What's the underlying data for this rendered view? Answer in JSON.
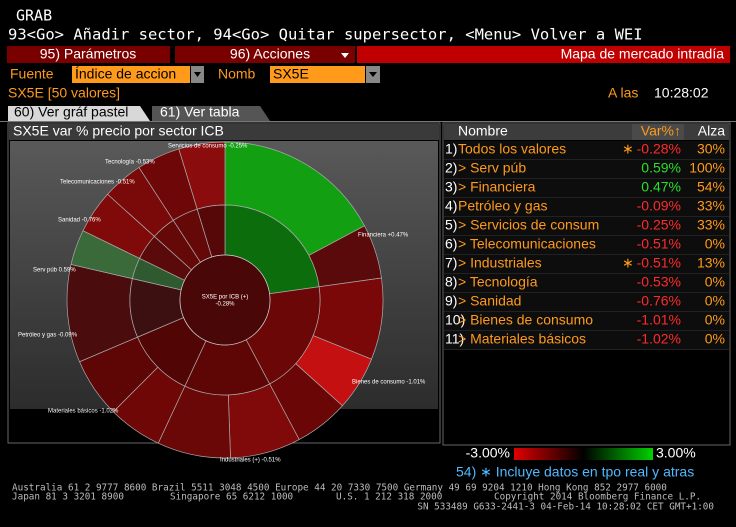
{
  "header": {
    "title": "GRAB",
    "command": "93<Go> Añadir sector, 94<Go> Quitar supersector, <Menu> Volver a WEI"
  },
  "toolbar": {
    "parametros": "95) Parámetros",
    "acciones": "96) Acciones",
    "title": "Mapa de mercado intradía"
  },
  "fields": {
    "fuente_label": "Fuente",
    "fuente_value": "Índice de accion",
    "nomb_label": "Nomb",
    "nomb_value": "SX5E"
  },
  "status": {
    "index": "SX5E [50 valores]",
    "time_label": "A las",
    "time": "10:28:02"
  },
  "tabs": [
    "60) Ver gráf pastel",
    "61) Ver tabla"
  ],
  "chart": {
    "title": "SX5E var % precio por sector ICB",
    "center_label": "SX5E por ICB (+)",
    "center_value": "-0.28%",
    "labels": [
      "Servicios de consumo -0.25%",
      "Tecnología -0.53%",
      "Telecomunicaciones -0.51%",
      "Sanidad -0.76%",
      "Serv púb 0.59%",
      "Financiera +0.47%",
      "Petróleo y gas -0.09%",
      "Bienes de consumo -1.01%",
      "Materiales básicos -1.02%",
      "Industriales (+) -0.51%"
    ]
  },
  "table": {
    "headers": [
      "Nombre",
      "Var%↑",
      "Alza"
    ],
    "rows": [
      [
        "1)",
        "Todos los valores",
        "∗",
        "-0.28%",
        "30%"
      ],
      [
        "2)",
        "> Serv púb",
        "",
        "0.59%",
        "100%"
      ],
      [
        "3)",
        "> Financiera",
        "",
        "0.47%",
        "54%"
      ],
      [
        "4)",
        "Petróleo y gas",
        "",
        "-0.09%",
        "33%"
      ],
      [
        "5)",
        "> Servicios de consum",
        "",
        "-0.25%",
        "33%"
      ],
      [
        "6)",
        "> Telecomunicaciones",
        "",
        "-0.51%",
        "0%"
      ],
      [
        "7)",
        "> Industriales",
        "∗",
        "-0.51%",
        "13%"
      ],
      [
        "8)",
        "> Tecnología",
        "",
        "-0.53%",
        "0%"
      ],
      [
        "9)",
        "> Sanidad",
        "",
        "-0.76%",
        "0%"
      ],
      [
        "10)",
        "> Bienes de consumo",
        "",
        "-1.01%",
        "0%"
      ],
      [
        "11)",
        "> Materiales básicos",
        "",
        "-1.02%",
        "0%"
      ]
    ]
  },
  "legend": {
    "min": "-3.00%",
    "max": "3.00%"
  },
  "note": "54) ∗ Incluye datos en tpo real y atras",
  "footer": {
    "line1": "Australia 61 2 9777 8600 Brazil 5511 3048 4500 Europe 44 20 7330 7500 Germany 49 69 9204 1210 Hong Kong 852 2977 6000",
    "line2": [
      "Japan 81 3 3201 8900",
      "Singapore 65 6212 1000",
      "U.S. 1 212 318 2000",
      "Copyright 2014 Bloomberg Finance L.P."
    ],
    "line3": "SN 533489 G633-2441-3 04-Feb-14 10:28:02 CET  GMT+1:00"
  }
}
